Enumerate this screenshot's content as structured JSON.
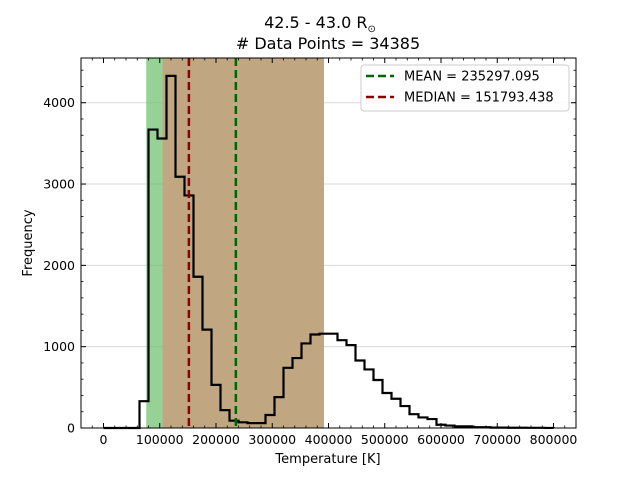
{
  "chart_data": {
    "type": "bar",
    "title_line1": "42.5 - 43.0 R",
    "title_symbol": "⊙",
    "title_line2": "# Data Points = 34385",
    "xlabel": "Temperature [K]",
    "ylabel": "Frequency",
    "xlim": [
      -40000,
      840000
    ],
    "ylim": [
      0,
      4550
    ],
    "xticks": [
      0,
      100000,
      200000,
      300000,
      400000,
      500000,
      600000,
      700000,
      800000
    ],
    "xtick_labels": [
      "0",
      "100000",
      "200000",
      "300000",
      "400000",
      "500000",
      "600000",
      "700000",
      "800000"
    ],
    "yticks": [
      0,
      1000,
      2000,
      3000,
      4000
    ],
    "ytick_labels": [
      "0",
      "1000",
      "2000",
      "3000",
      "4000"
    ],
    "grid": "horizontal",
    "bin_edges": [
      0,
      16000,
      32000,
      48000,
      64000,
      80000,
      96000,
      112000,
      128000,
      144000,
      160000,
      176000,
      192000,
      208000,
      224000,
      240000,
      256000,
      272000,
      288000,
      304000,
      320000,
      336000,
      352000,
      368000,
      384000,
      400000,
      416000,
      432000,
      448000,
      464000,
      480000,
      496000,
      512000,
      528000,
      544000,
      560000,
      576000,
      592000,
      608000,
      624000,
      640000,
      656000,
      672000,
      688000,
      704000,
      720000,
      736000,
      752000,
      768000,
      784000,
      800000
    ],
    "counts": [
      0,
      0,
      0,
      0,
      330,
      3670,
      3560,
      4330,
      3090,
      2860,
      1860,
      1210,
      530,
      220,
      90,
      70,
      60,
      60,
      160,
      380,
      740,
      860,
      1040,
      1150,
      1160,
      1160,
      1080,
      1020,
      830,
      720,
      590,
      430,
      360,
      270,
      170,
      130,
      110,
      40,
      30,
      20,
      20,
      10,
      10,
      5,
      5,
      3,
      3,
      2,
      2,
      1
    ],
    "shaded_regions": [
      {
        "xmin": 76000,
        "xmax": 392000,
        "color": "#6abf6a",
        "alpha": 0.7
      },
      {
        "xmin": 105000,
        "xmax": 392000,
        "color": "#c8a07f",
        "alpha": 0.85
      }
    ],
    "legend_position": "top-right",
    "lines": [
      {
        "name": "MEAN = 235297.095",
        "x": 235297.095,
        "color": "#006400",
        "style": "dashed"
      },
      {
        "name": "MEDIAN = 151793.438",
        "x": 151793.438,
        "color": "#8b0000",
        "style": "dashed"
      }
    ]
  }
}
